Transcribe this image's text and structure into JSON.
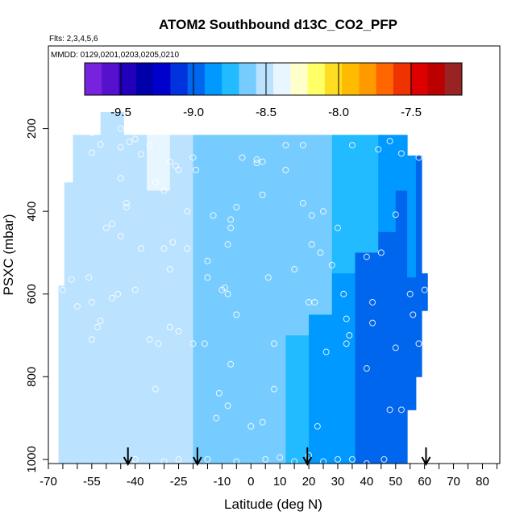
{
  "chart_data": {
    "type": "heatmap",
    "title": "ATOM2 Southbound d13C_CO2_PFP",
    "subtitle_flights": "Flts: 2,3,4,5,6",
    "subtitle_dates": "MMDD: 0129,0201,0203,0205,0210",
    "xlabel": "Latitude (deg N)",
    "ylabel": "PSXC (mbar)",
    "xlim": [
      -70,
      86
    ],
    "ylim": [
      1010,
      0
    ],
    "x_tick_values": [
      -70,
      -55,
      -40,
      -25,
      -10,
      0,
      10,
      20,
      30,
      40,
      50,
      60,
      70,
      80
    ],
    "x_tick_labels": [
      "-70",
      "-55",
      "-40",
      "-25",
      "-10",
      "0",
      "10",
      "20",
      "30",
      "40",
      "50",
      "60",
      "70",
      "80"
    ],
    "x_minor_ticks": [
      -65,
      -60,
      -50,
      -45,
      -35,
      -30,
      -20,
      -15,
      -5,
      5,
      15,
      25,
      35,
      45,
      55,
      65,
      75,
      85
    ],
    "y_tick_values": [
      200,
      400,
      600,
      800,
      1000
    ],
    "y_tick_labels": [
      "200",
      "400",
      "600",
      "800",
      "1000"
    ],
    "colorbar": {
      "range": [
        -9.75,
        -7.15
      ],
      "tick_values": [
        -9.5,
        -9.0,
        -8.5,
        -8.0,
        -7.5
      ],
      "tick_labels": [
        "-9.5",
        "-9.0",
        "-8.5",
        "-8.0",
        "-7.5"
      ],
      "colors": [
        "#7722dd",
        "#5511cc",
        "#2200bb",
        "#0000aa",
        "#0000cc",
        "#0033dd",
        "#0066ee",
        "#0099ff",
        "#22bbff",
        "#77ccff",
        "#bbe2ff",
        "#e8f6ff",
        "#ffffcc",
        "#ffff66",
        "#ffdd22",
        "#ffbb00",
        "#ff9900",
        "#ff6600",
        "#ee3300",
        "#dd0000",
        "#bb0000",
        "#992222"
      ]
    },
    "arrows_latitude": [
      -42.5,
      -18.5,
      19.5,
      60.5
    ],
    "columns": [
      {
        "x0": -66.5,
        "x1": -64.5,
        "segments": [
          [
            580,
            1010,
            -8.55
          ]
        ]
      },
      {
        "x0": -64.5,
        "x1": -61.5,
        "segments": [
          [
            330,
            1010,
            -8.56
          ]
        ]
      },
      {
        "x0": -61.5,
        "x1": -58.5,
        "segments": [
          [
            215,
            1010,
            -8.56
          ]
        ]
      },
      {
        "x0": -58.5,
        "x1": -52,
        "segments": [
          [
            215,
            1010,
            -8.55
          ]
        ]
      },
      {
        "x0": -52,
        "x1": -44,
        "segments": [
          [
            160,
            1010,
            -8.55
          ]
        ]
      },
      {
        "x0": -44,
        "x1": -36,
        "segments": [
          [
            215,
            460,
            -8.54
          ],
          [
            460,
            1010,
            -8.54
          ]
        ]
      },
      {
        "x0": -36,
        "x1": -28,
        "segments": [
          [
            215,
            350,
            -8.45
          ],
          [
            350,
            520,
            -8.5
          ],
          [
            520,
            1010,
            -8.56
          ]
        ]
      },
      {
        "x0": -28,
        "x1": -20,
        "segments": [
          [
            215,
            300,
            -8.5
          ],
          [
            300,
            1010,
            -8.56
          ]
        ]
      },
      {
        "x0": -20,
        "x1": -12,
        "segments": [
          [
            215,
            1010,
            -8.57
          ]
        ]
      },
      {
        "x0": -12,
        "x1": -4,
        "segments": [
          [
            215,
            1010,
            -8.58
          ]
        ]
      },
      {
        "x0": -4,
        "x1": 4,
        "segments": [
          [
            215,
            1010,
            -8.6
          ]
        ]
      },
      {
        "x0": 4,
        "x1": 12,
        "segments": [
          [
            215,
            600,
            -8.62
          ],
          [
            600,
            1010,
            -8.64
          ]
        ]
      },
      {
        "x0": 12,
        "x1": 20,
        "segments": [
          [
            215,
            700,
            -8.64
          ],
          [
            700,
            1010,
            -8.74
          ]
        ]
      },
      {
        "x0": 20,
        "x1": 28,
        "segments": [
          [
            215,
            650,
            -8.68
          ],
          [
            650,
            1010,
            -8.84
          ]
        ]
      },
      {
        "x0": 28,
        "x1": 36,
        "segments": [
          [
            215,
            550,
            -8.72
          ],
          [
            550,
            1010,
            -8.9
          ]
        ]
      },
      {
        "x0": 36,
        "x1": 44,
        "segments": [
          [
            215,
            500,
            -8.78
          ],
          [
            500,
            1010,
            -8.93
          ]
        ]
      },
      {
        "x0": 44,
        "x1": 50,
        "segments": [
          [
            215,
            450,
            -8.84
          ],
          [
            450,
            1010,
            -8.95
          ]
        ]
      },
      {
        "x0": 50,
        "x1": 54,
        "segments": [
          [
            215,
            350,
            -8.86
          ],
          [
            350,
            1010,
            -8.96
          ]
        ]
      },
      {
        "x0": 54,
        "x1": 57,
        "segments": [
          [
            265,
            560,
            -8.92
          ],
          [
            560,
            880,
            -8.97
          ]
        ]
      },
      {
        "x0": 57,
        "x1": 59,
        "segments": [
          [
            265,
            540,
            -8.93
          ],
          [
            540,
            800,
            -8.97
          ]
        ]
      },
      {
        "x0": 59,
        "x1": 61,
        "segments": [
          [
            550,
            640,
            -8.98
          ]
        ]
      }
    ],
    "points": [
      [
        -60,
        630
      ],
      [
        -55,
        620
      ],
      [
        -53,
        680
      ],
      [
        -52,
        665
      ],
      [
        -52,
        238
      ],
      [
        -55,
        258
      ],
      [
        -45,
        320
      ],
      [
        -45,
        460
      ],
      [
        -43,
        380
      ],
      [
        -43,
        390
      ],
      [
        -45,
        245
      ],
      [
        -40,
        225
      ],
      [
        -38,
        262
      ],
      [
        -38,
        490
      ],
      [
        -33,
        330
      ],
      [
        -30,
        490
      ],
      [
        -28,
        280
      ],
      [
        -27,
        475
      ],
      [
        -25,
        300
      ],
      [
        -22,
        490
      ],
      [
        -20,
        270
      ],
      [
        -35,
        710
      ],
      [
        -33,
        830
      ],
      [
        -25,
        690
      ],
      [
        -20,
        720
      ],
      [
        -15,
        560
      ],
      [
        -10,
        590
      ],
      [
        -8,
        600
      ],
      [
        -9,
        585
      ],
      [
        -5,
        650
      ],
      [
        -3,
        270
      ],
      [
        2,
        275
      ],
      [
        2,
        283
      ],
      [
        4,
        360
      ],
      [
        4,
        280
      ],
      [
        6,
        560
      ],
      [
        8,
        720
      ],
      [
        -5,
        390
      ],
      [
        -7,
        420
      ],
      [
        -7,
        440
      ],
      [
        -13,
        410
      ],
      [
        -11,
        840
      ],
      [
        -8,
        870
      ],
      [
        -12,
        900
      ],
      [
        -7,
        770
      ],
      [
        8,
        830
      ],
      [
        12,
        300
      ],
      [
        12,
        240
      ],
      [
        18,
        240
      ],
      [
        21,
        480
      ],
      [
        22,
        620
      ],
      [
        24,
        500
      ],
      [
        25,
        400
      ],
      [
        26,
        740
      ],
      [
        28,
        530
      ],
      [
        30,
        440
      ],
      [
        32,
        600
      ],
      [
        33,
        720
      ],
      [
        33,
        660
      ],
      [
        35,
        240
      ],
      [
        40,
        510
      ],
      [
        42,
        670
      ],
      [
        42,
        620
      ],
      [
        45,
        500
      ],
      [
        48,
        880
      ],
      [
        50,
        730
      ],
      [
        50,
        408
      ],
      [
        52,
        880
      ],
      [
        55,
        600
      ],
      [
        56,
        650
      ],
      [
        58,
        270
      ],
      [
        58,
        720
      ],
      [
        60,
        590
      ],
      [
        20,
        620
      ],
      [
        23,
        920
      ],
      [
        -26,
        290
      ],
      [
        -19,
        300
      ],
      [
        -55,
        210
      ],
      [
        -45,
        200
      ],
      [
        -42,
        232
      ],
      [
        -48,
        430
      ],
      [
        -46,
        600
      ],
      [
        -48,
        610
      ],
      [
        -55,
        710
      ],
      [
        -32,
        720
      ],
      [
        -28,
        680
      ],
      [
        -16,
        720
      ],
      [
        0,
        920
      ],
      [
        4,
        910
      ],
      [
        15,
        540
      ],
      [
        34,
        700
      ],
      [
        40,
        780
      ],
      [
        44,
        250
      ],
      [
        48,
        230
      ],
      [
        52,
        260
      ],
      [
        -65,
        590
      ],
      [
        -62,
        565
      ],
      [
        -56,
        560
      ],
      [
        -50,
        440
      ],
      [
        -40,
        590
      ],
      [
        -35,
        240
      ],
      [
        -30,
        350
      ],
      [
        -22,
        400
      ],
      [
        18,
        380
      ],
      [
        21,
        410
      ],
      [
        30,
        1000
      ],
      [
        35,
        1000
      ],
      [
        40,
        1010
      ],
      [
        46,
        1000
      ],
      [
        -40,
        1000
      ],
      [
        -30,
        1005
      ],
      [
        -25,
        1000
      ],
      [
        -15,
        1000
      ],
      [
        -5,
        1005
      ],
      [
        5,
        1000
      ],
      [
        10,
        995
      ],
      [
        15,
        1005
      ],
      [
        25,
        1005
      ],
      [
        20,
        990
      ],
      [
        -8,
        480
      ],
      [
        -15,
        520
      ],
      [
        -28,
        540
      ]
    ]
  }
}
